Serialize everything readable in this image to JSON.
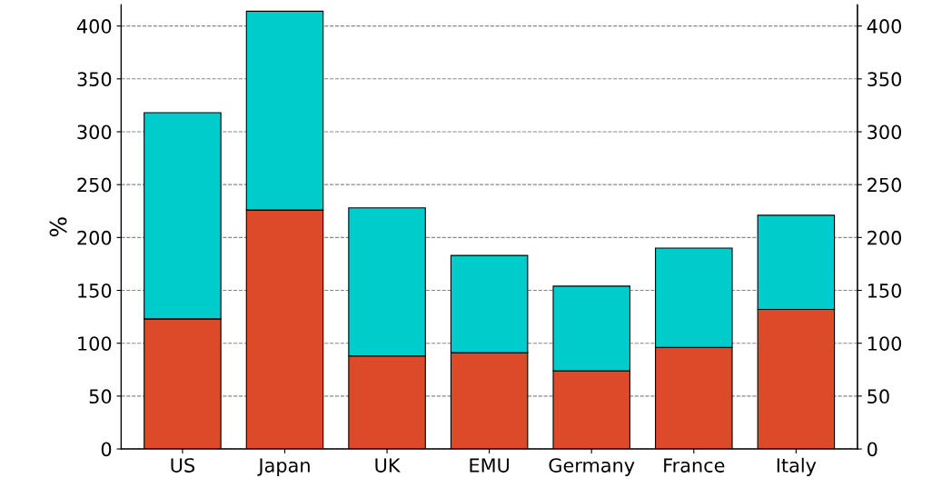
{
  "chart_data": {
    "type": "bar",
    "ylabel": "%",
    "stacked": true,
    "categories": [
      "US",
      "Japan",
      "UK",
      "EMU",
      "Germany",
      "France",
      "Italy"
    ],
    "series": [
      {
        "color": "#dd4a2a",
        "values": [
          123,
          226,
          88,
          91,
          74,
          96,
          132
        ]
      },
      {
        "color": "#00cccc",
        "values": [
          195,
          188,
          140,
          92,
          80,
          94,
          89
        ]
      }
    ],
    "ylim": [
      0,
      420
    ],
    "yticks": [
      0,
      50,
      100,
      150,
      200,
      250,
      300,
      350,
      400
    ],
    "y2lim": [
      0,
      420
    ],
    "y2ticks": [
      0,
      50,
      100,
      150,
      200,
      250,
      300,
      350,
      400
    ],
    "grid": "y",
    "legend": false
  }
}
